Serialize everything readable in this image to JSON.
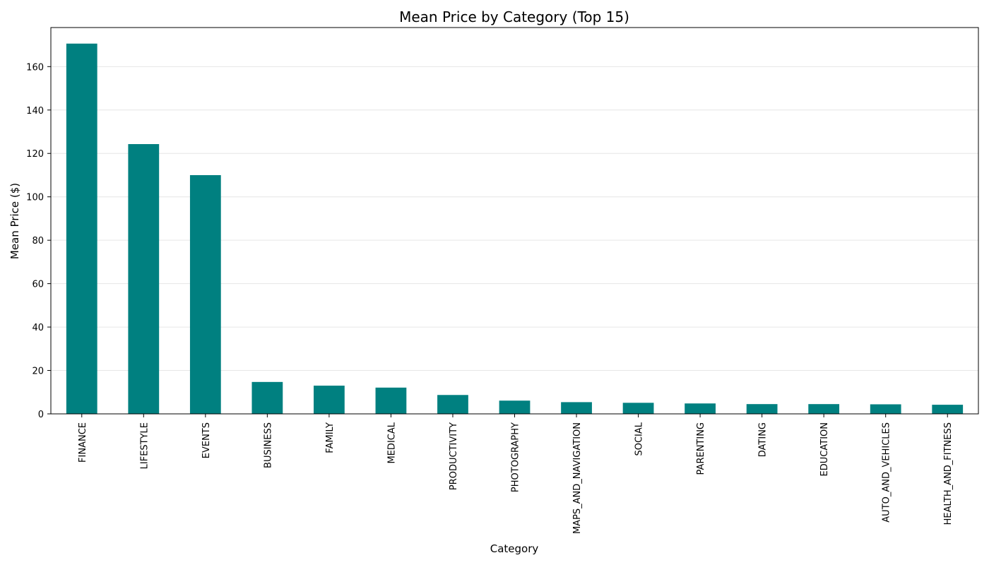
{
  "chart_data": {
    "type": "bar",
    "title": "Mean Price by Category (Top 15)",
    "xlabel": "Category",
    "ylabel": "Mean Price ($)",
    "categories": [
      "FINANCE",
      "LIFESTYLE",
      "EVENTS",
      "BUSINESS",
      "FAMILY",
      "MEDICAL",
      "PRODUCTIVITY",
      "PHOTOGRAPHY",
      "MAPS_AND_NAVIGATION",
      "SOCIAL",
      "PARENTING",
      "DATING",
      "EDUCATION",
      "AUTO_AND_VEHICLES",
      "HEALTH_AND_FITNESS"
    ],
    "values": [
      170.6,
      124.3,
      110.0,
      14.7,
      13.0,
      12.1,
      8.7,
      6.1,
      5.4,
      5.1,
      4.8,
      4.5,
      4.5,
      4.4,
      4.2
    ],
    "ylim": [
      0,
      178
    ],
    "yticks": [
      0,
      20,
      40,
      60,
      80,
      100,
      120,
      140,
      160
    ],
    "grid": "y",
    "bar_color": "#008080",
    "grid_color": "#e6e6e6"
  }
}
